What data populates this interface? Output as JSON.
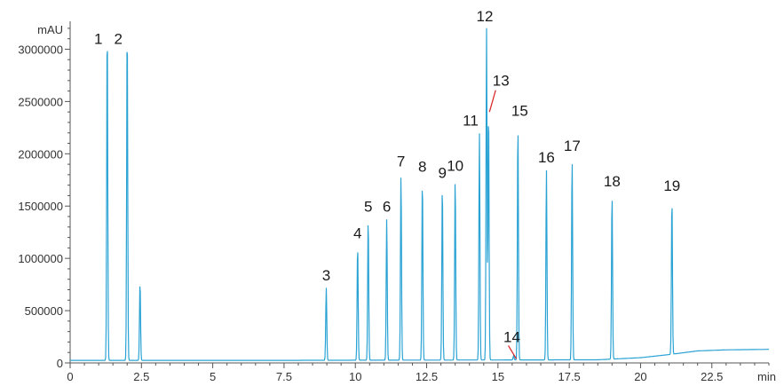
{
  "chart_data": {
    "type": "line",
    "title": "",
    "ylabel": "mAU",
    "xlabel": "min",
    "xlim": [
      0,
      24.5
    ],
    "ylim": [
      0,
      3250000
    ],
    "grid": false,
    "x_ticks": [
      0,
      2.5,
      5,
      7.5,
      10,
      12.5,
      15,
      17.5,
      20,
      22.5
    ],
    "x_tick_labels": [
      "0",
      "2.5",
      "5",
      "7.5",
      "10",
      "12.5",
      "15",
      "17.5",
      "20",
      "22.5"
    ],
    "y_ticks": [
      0,
      500000,
      1000000,
      1500000,
      2000000,
      2500000,
      3000000
    ],
    "y_tick_labels": [
      "0",
      "500000",
      "1000000",
      "1500000",
      "2000000",
      "2500000",
      "3000000"
    ],
    "baseline": [
      [
        0,
        25000
      ],
      [
        8,
        25000
      ],
      [
        18.5,
        30000
      ],
      [
        20,
        50000
      ],
      [
        21,
        80000
      ],
      [
        22,
        115000
      ],
      [
        23,
        125000
      ],
      [
        24.5,
        130000
      ]
    ],
    "peaks": [
      {
        "label": "1",
        "x": 1.3,
        "y": 3250000
      },
      {
        "label": "2",
        "x": 2.0,
        "y": 3250000
      },
      {
        "label": "",
        "x": 2.45,
        "y": 775000
      },
      {
        "label": "3",
        "x": 8.98,
        "y": 720000
      },
      {
        "label": "4",
        "x": 10.08,
        "y": 1125000
      },
      {
        "label": "5",
        "x": 10.45,
        "y": 1380000
      },
      {
        "label": "6",
        "x": 11.1,
        "y": 1380000
      },
      {
        "label": "7",
        "x": 11.6,
        "y": 1810000
      },
      {
        "label": "8",
        "x": 12.35,
        "y": 1760000
      },
      {
        "label": "9",
        "x": 13.05,
        "y": 1700000
      },
      {
        "label": "10",
        "x": 13.5,
        "y": 1770000
      },
      {
        "label": "11",
        "x": 14.35,
        "y": 2200000
      },
      {
        "label": "12",
        "x": 14.6,
        "y": 3200000
      },
      {
        "label": "13",
        "x": 14.67,
        "y": 2450000
      },
      {
        "label": "14",
        "x": 15.55,
        "y": 70000
      },
      {
        "label": "15",
        "x": 15.7,
        "y": 2280000
      },
      {
        "label": "16",
        "x": 16.7,
        "y": 1850000
      },
      {
        "label": "17",
        "x": 17.6,
        "y": 1960000
      },
      {
        "label": "18",
        "x": 19.0,
        "y": 1620000
      },
      {
        "label": "19",
        "x": 21.1,
        "y": 1580000
      }
    ],
    "colors": {
      "trace": "#2aa3d4",
      "axis": "#555555",
      "marker": "#d92020"
    }
  }
}
